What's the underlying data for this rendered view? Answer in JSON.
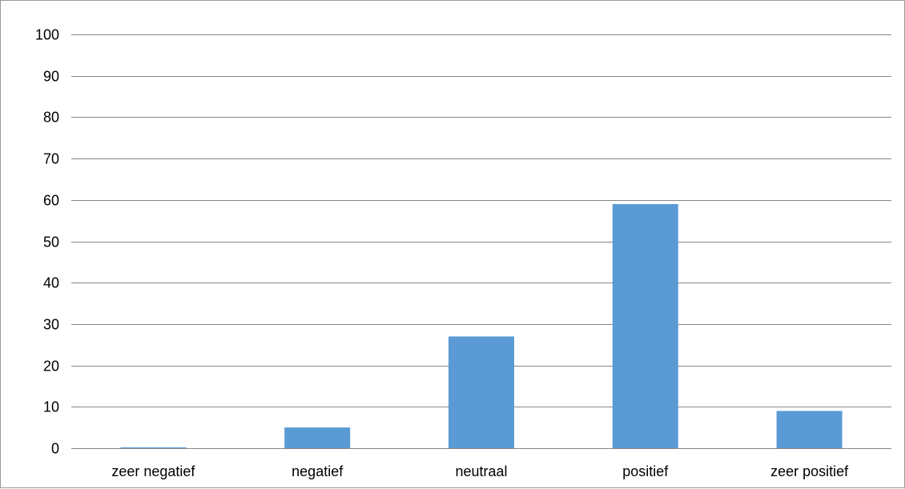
{
  "chart_data": {
    "type": "bar",
    "categories": [
      "zeer negatief",
      "negatief",
      "neutraal",
      "positief",
      "zeer positief"
    ],
    "values": [
      0.2,
      5,
      27,
      59,
      9
    ],
    "ylim": [
      0,
      100
    ],
    "yticks": [
      "0",
      "10",
      "20",
      "30",
      "40",
      "50",
      "60",
      "70",
      "80",
      "90",
      "100"
    ],
    "grid": true,
    "legend": "none",
    "colors": {
      "bar": "#5b9bd5",
      "grid": "#868686",
      "axis": "#868686"
    }
  }
}
